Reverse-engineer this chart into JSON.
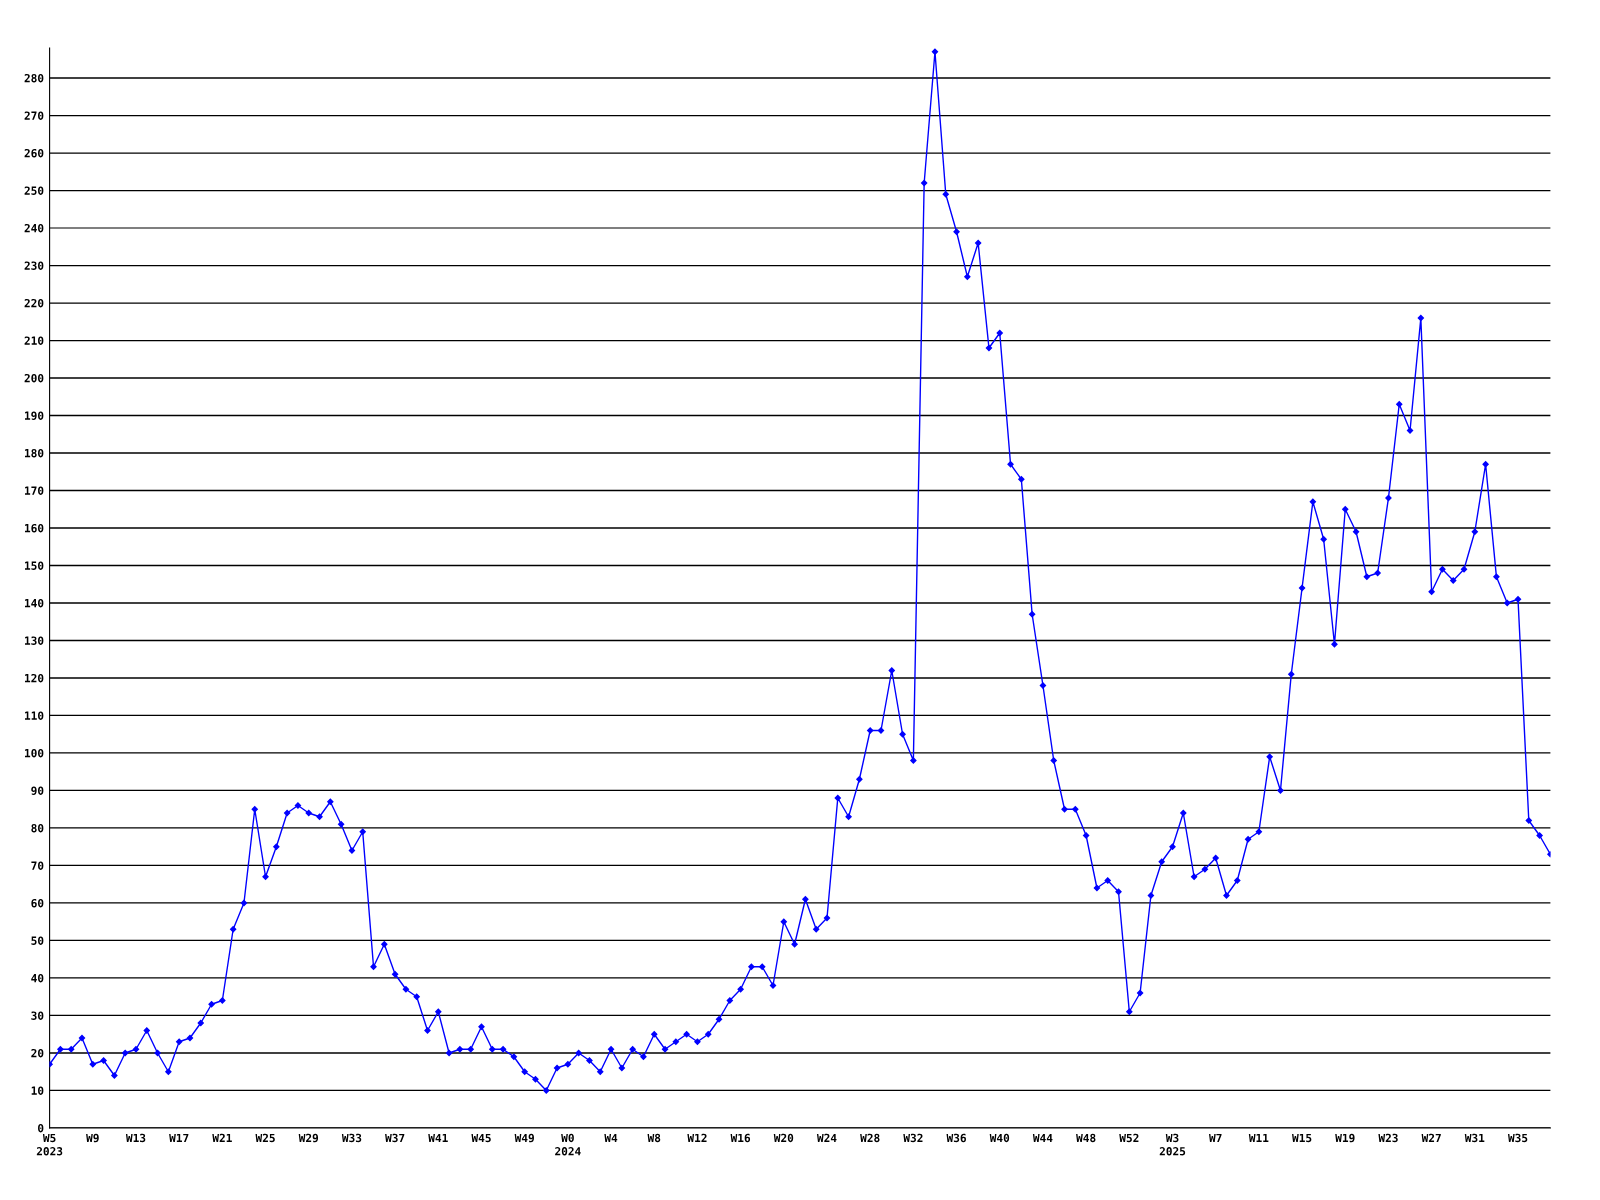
{
  "chart_data": {
    "type": "line",
    "categories": [
      "W5\n2023",
      null,
      null,
      null,
      "W9",
      null,
      null,
      null,
      "W13",
      null,
      null,
      null,
      "W17",
      null,
      null,
      null,
      "W21",
      null,
      null,
      null,
      "W25",
      null,
      null,
      null,
      "W29",
      null,
      null,
      null,
      "W33",
      null,
      null,
      null,
      "W37",
      null,
      null,
      null,
      "W41",
      null,
      null,
      null,
      "W45",
      null,
      null,
      null,
      "W49",
      null,
      null,
      null,
      "W0\n2024",
      null,
      null,
      null,
      "W4",
      null,
      null,
      null,
      "W8",
      null,
      null,
      null,
      "W12",
      null,
      null,
      null,
      "W16",
      null,
      null,
      null,
      "W20",
      null,
      null,
      null,
      "W24",
      null,
      null,
      null,
      "W28",
      null,
      null,
      null,
      "W32",
      null,
      null,
      null,
      "W36",
      null,
      null,
      null,
      "W40",
      null,
      null,
      null,
      "W44",
      null,
      null,
      null,
      "W48",
      null,
      null,
      null,
      "W52",
      null,
      null,
      null,
      "W3\n2025",
      null,
      null,
      null,
      "W7",
      null,
      null,
      null,
      "W11",
      null,
      null,
      null,
      "W15",
      null,
      null,
      null,
      "W19",
      null,
      null,
      null,
      "W23",
      null,
      null,
      null,
      "W27",
      null,
      null,
      null,
      "W31",
      null,
      null,
      null,
      "W35",
      null,
      null,
      null
    ],
    "series": [
      {
        "color": "#0000ff",
        "values": [
          17,
          21,
          21,
          24,
          17,
          18,
          14,
          20,
          21,
          26,
          20,
          15,
          23,
          24,
          28,
          33,
          34,
          53,
          60,
          85,
          67,
          75,
          84,
          86,
          84,
          83,
          87,
          81,
          74,
          79,
          43,
          49,
          41,
          37,
          35,
          26,
          31,
          20,
          21,
          21,
          27,
          21,
          21,
          19,
          15,
          13,
          10,
          16,
          17,
          20,
          18,
          15,
          21,
          16,
          21,
          19,
          25,
          21,
          23,
          25,
          23,
          25,
          29,
          34,
          37,
          43,
          43,
          38,
          55,
          49,
          61,
          53,
          56,
          88,
          83,
          93,
          106,
          106,
          122,
          105,
          98,
          252,
          287,
          249,
          239,
          227,
          236,
          208,
          212,
          177,
          173,
          137,
          118,
          98,
          85,
          85,
          78,
          64,
          66,
          63,
          31,
          36,
          62,
          71,
          75,
          84,
          67,
          69,
          72,
          62,
          66,
          77,
          79,
          99,
          90,
          121,
          144,
          167,
          157,
          129,
          165,
          159,
          147,
          148,
          168,
          193,
          186,
          216,
          143,
          149,
          146,
          149,
          159,
          177,
          147,
          140,
          141,
          82,
          78,
          73
        ]
      }
    ],
    "ylim": [
      0,
      288
    ],
    "yticks": [
      0,
      10,
      20,
      30,
      40,
      50,
      60,
      70,
      80,
      90,
      100,
      110,
      120,
      130,
      140,
      150,
      160,
      170,
      180,
      190,
      200,
      210,
      220,
      230,
      240,
      250,
      260,
      270,
      280
    ],
    "grid": "y",
    "marker": "diamond",
    "line_style": "solid",
    "legend": false
  }
}
